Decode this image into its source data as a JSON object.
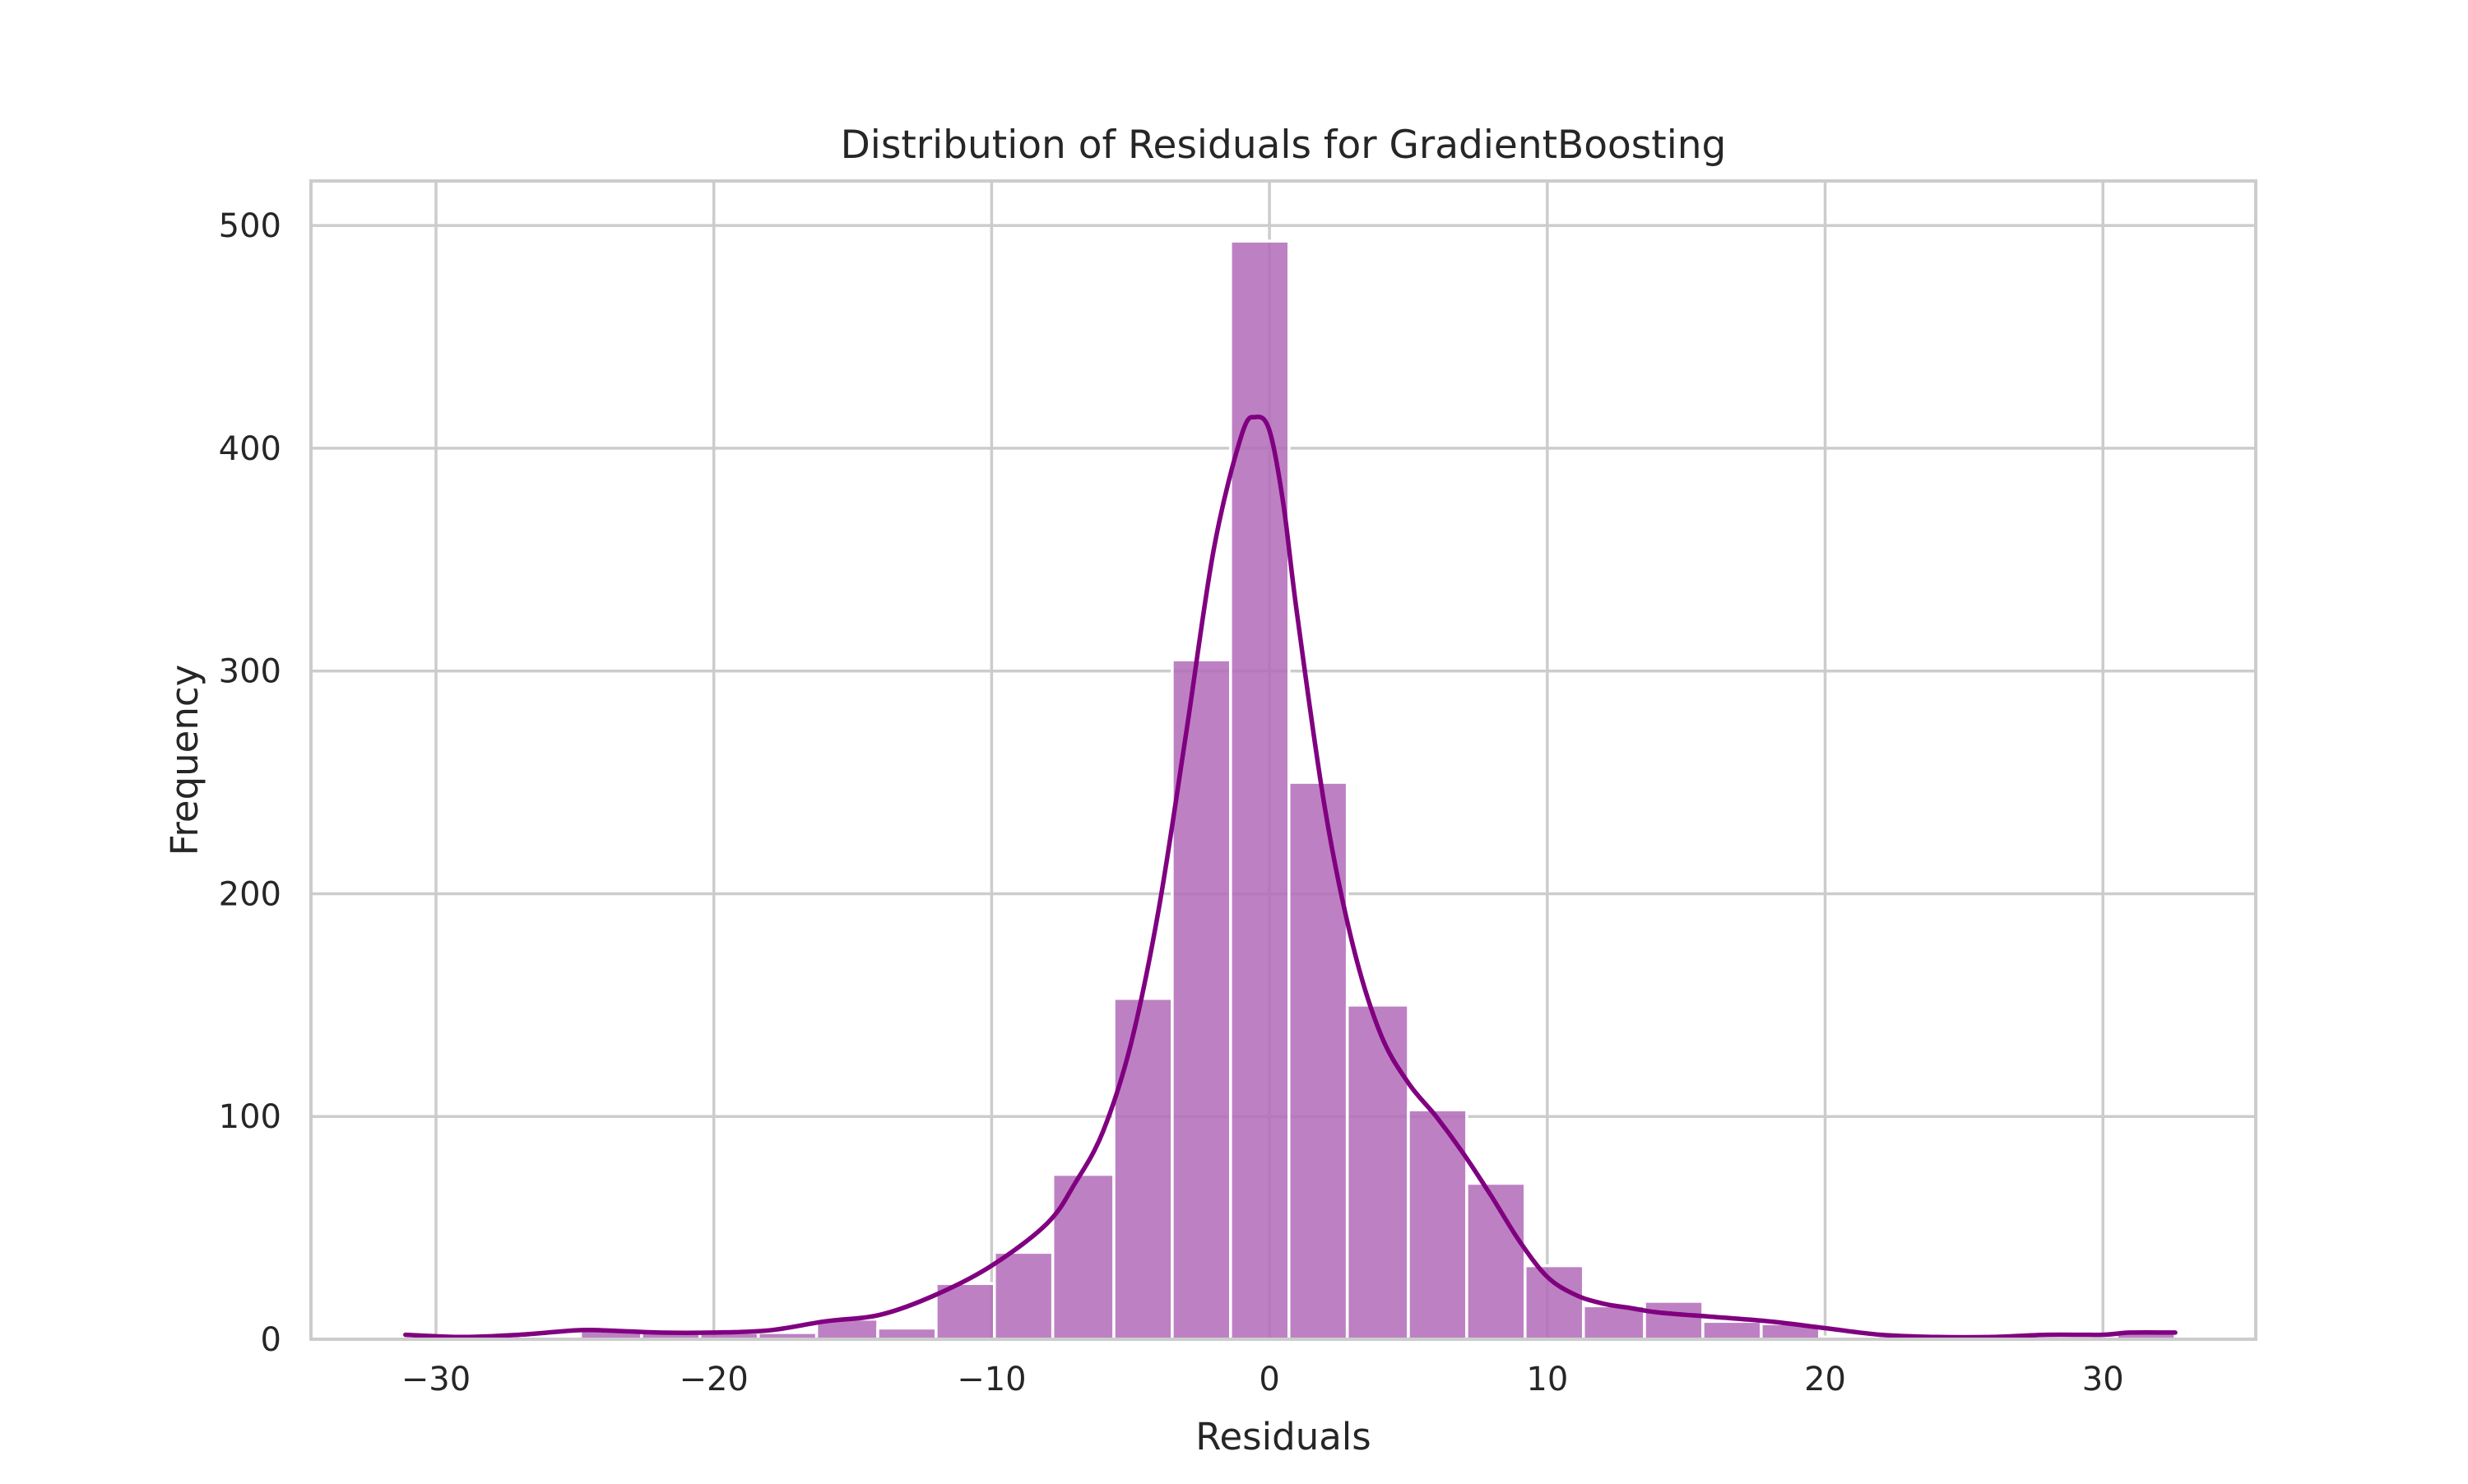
{
  "chart_data": {
    "type": "bar",
    "title": "Distribution of Residuals for GradientBoosting",
    "xlabel": "Residuals",
    "ylabel": "Frequency",
    "xlim": [
      -34.5,
      35.5
    ],
    "ylim": [
      0,
      520
    ],
    "x_ticks": [
      -30,
      -20,
      -10,
      0,
      10,
      20,
      30
    ],
    "x_tick_labels": [
      "−30",
      "−20",
      "−10",
      "0",
      "10",
      "20",
      "30"
    ],
    "y_ticks": [
      0,
      100,
      200,
      300,
      400,
      500
    ],
    "y_tick_labels": [
      "0",
      "100",
      "200",
      "300",
      "400",
      "500"
    ],
    "grid": true,
    "bar_color": "#b26bb8",
    "bar_edge_color": "#ffffff",
    "kde_color": "#800080",
    "grid_color": "#cccccc",
    "bins": [
      {
        "x0": -31.1,
        "x1": -29.0,
        "count": 1
      },
      {
        "x0": -29.0,
        "x1": -26.9,
        "count": 0
      },
      {
        "x0": -26.9,
        "x1": -24.8,
        "count": 1
      },
      {
        "x0": -24.8,
        "x1": -22.6,
        "count": 4
      },
      {
        "x0": -22.6,
        "x1": -20.5,
        "count": 3
      },
      {
        "x0": -20.5,
        "x1": -18.4,
        "count": 3
      },
      {
        "x0": -18.4,
        "x1": -16.3,
        "count": 3
      },
      {
        "x0": -16.3,
        "x1": -14.1,
        "count": 9
      },
      {
        "x0": -14.1,
        "x1": -12.0,
        "count": 5
      },
      {
        "x0": -12.0,
        "x1": -9.9,
        "count": 25
      },
      {
        "x0": -9.9,
        "x1": -7.8,
        "count": 39
      },
      {
        "x0": -7.8,
        "x1": -5.6,
        "count": 74
      },
      {
        "x0": -5.6,
        "x1": -3.5,
        "count": 153
      },
      {
        "x0": -3.5,
        "x1": -1.4,
        "count": 305
      },
      {
        "x0": -1.4,
        "x1": 0.7,
        "count": 493
      },
      {
        "x0": 0.7,
        "x1": 2.8,
        "count": 250
      },
      {
        "x0": 2.8,
        "x1": 5.0,
        "count": 150
      },
      {
        "x0": 5.0,
        "x1": 7.1,
        "count": 103
      },
      {
        "x0": 7.1,
        "x1": 9.2,
        "count": 70
      },
      {
        "x0": 9.2,
        "x1": 11.3,
        "count": 33
      },
      {
        "x0": 11.3,
        "x1": 13.5,
        "count": 15
      },
      {
        "x0": 13.5,
        "x1": 15.6,
        "count": 17
      },
      {
        "x0": 15.6,
        "x1": 17.7,
        "count": 8
      },
      {
        "x0": 17.7,
        "x1": 19.8,
        "count": 7
      },
      {
        "x0": 19.8,
        "x1": 22.0,
        "count": 1
      },
      {
        "x0": 22.0,
        "x1": 24.1,
        "count": 0
      },
      {
        "x0": 24.1,
        "x1": 26.2,
        "count": 1
      },
      {
        "x0": 26.2,
        "x1": 28.3,
        "count": 1
      },
      {
        "x0": 28.3,
        "x1": 30.5,
        "count": 1
      },
      {
        "x0": 30.5,
        "x1": 32.6,
        "count": 3
      }
    ],
    "kde": {
      "x": [
        -31.1,
        -29.0,
        -27.0,
        -25.0,
        -24.0,
        -22.0,
        -20.0,
        -18.0,
        -16.0,
        -14.0,
        -12.0,
        -10.0,
        -8.0,
        -7.0,
        -6.0,
        -5.0,
        -4.0,
        -3.0,
        -2.0,
        -1.0,
        -0.5,
        0.0,
        0.5,
        1.0,
        2.0,
        3.0,
        4.0,
        5.0,
        6.0,
        7.0,
        8.0,
        9.0,
        10.0,
        11.0,
        12.0,
        13.0,
        14.0,
        16.0,
        18.0,
        20.0,
        22.0,
        24.0,
        26.0,
        28.0,
        30.0,
        31.0,
        32.6
      ],
      "y": [
        2,
        1,
        2,
        4,
        4,
        3,
        3,
        4,
        8,
        11,
        20,
        33,
        52,
        70,
        93,
        132,
        192,
        272,
        355,
        406,
        414,
        408,
        375,
        325,
        238,
        177,
        137,
        115,
        100,
        83,
        64,
        44,
        28,
        20,
        16,
        14,
        12,
        10,
        8,
        5,
        2,
        1,
        1,
        2,
        2,
        3,
        3
      ]
    }
  }
}
